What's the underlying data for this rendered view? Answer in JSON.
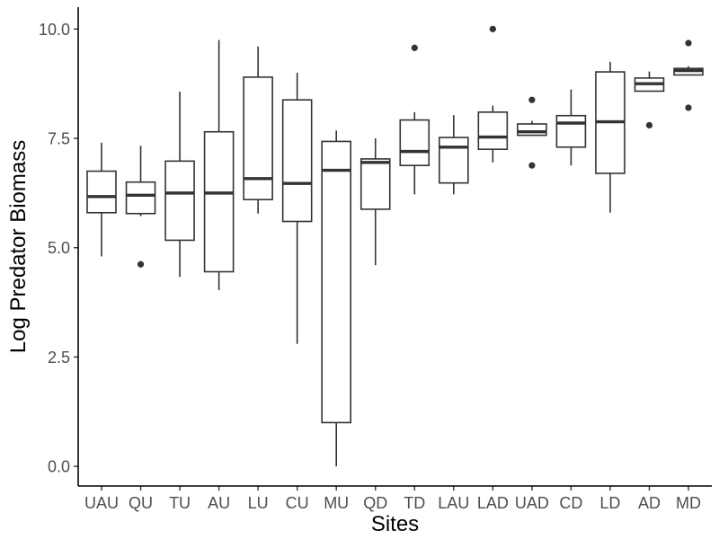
{
  "chart_data": {
    "type": "boxplot",
    "xlabel": "Sites",
    "ylabel": "Log Predator Biomass",
    "ylim": [
      -0.45,
      10.5
    ],
    "yticks": [
      0.0,
      2.5,
      5.0,
      7.5,
      10.0
    ],
    "ytick_labels": [
      "0.0",
      "2.5",
      "5.0",
      "7.5",
      "10.0"
    ],
    "grid": false,
    "categories": [
      "UAU",
      "QU",
      "TU",
      "AU",
      "LU",
      "CU",
      "MU",
      "QD",
      "TD",
      "LAU",
      "LAD",
      "UAD",
      "CD",
      "LD",
      "AD",
      "MD"
    ],
    "boxes": [
      {
        "site": "UAU",
        "whisker_low": 4.8,
        "q1": 5.8,
        "median": 6.17,
        "q3": 6.75,
        "whisker_high": 7.4,
        "outliers": []
      },
      {
        "site": "QU",
        "whisker_low": 5.72,
        "q1": 5.78,
        "median": 6.2,
        "q3": 6.5,
        "whisker_high": 7.33,
        "outliers": [
          4.62
        ]
      },
      {
        "site": "TU",
        "whisker_low": 4.33,
        "q1": 5.17,
        "median": 6.25,
        "q3": 6.98,
        "whisker_high": 8.57,
        "outliers": []
      },
      {
        "site": "AU",
        "whisker_low": 4.03,
        "q1": 4.45,
        "median": 6.25,
        "q3": 7.65,
        "whisker_high": 9.75,
        "outliers": []
      },
      {
        "site": "LU",
        "whisker_low": 5.78,
        "q1": 6.1,
        "median": 6.58,
        "q3": 8.9,
        "whisker_high": 9.6,
        "outliers": []
      },
      {
        "site": "CU",
        "whisker_low": 2.8,
        "q1": 5.6,
        "median": 6.47,
        "q3": 8.38,
        "whisker_high": 9.0,
        "outliers": []
      },
      {
        "site": "MU",
        "whisker_low": 0.0,
        "q1": 1.0,
        "median": 6.77,
        "q3": 7.43,
        "whisker_high": 7.68,
        "outliers": []
      },
      {
        "site": "QD",
        "whisker_low": 4.6,
        "q1": 5.88,
        "median": 6.95,
        "q3": 7.03,
        "whisker_high": 7.5,
        "outliers": []
      },
      {
        "site": "TD",
        "whisker_low": 6.22,
        "q1": 6.88,
        "median": 7.2,
        "q3": 7.92,
        "whisker_high": 8.1,
        "outliers": [
          9.57
        ]
      },
      {
        "site": "LAU",
        "whisker_low": 6.22,
        "q1": 6.48,
        "median": 7.3,
        "q3": 7.52,
        "whisker_high": 8.03,
        "outliers": []
      },
      {
        "site": "LAD",
        "whisker_low": 6.95,
        "q1": 7.25,
        "median": 7.53,
        "q3": 8.1,
        "whisker_high": 8.25,
        "outliers": [
          10.0
        ]
      },
      {
        "site": "UAD",
        "whisker_low": 7.57,
        "q1": 7.57,
        "median": 7.65,
        "q3": 7.83,
        "whisker_high": 7.9,
        "outliers": [
          8.38,
          6.88
        ]
      },
      {
        "site": "CD",
        "whisker_low": 6.88,
        "q1": 7.3,
        "median": 7.85,
        "q3": 8.02,
        "whisker_high": 8.62,
        "outliers": []
      },
      {
        "site": "LD",
        "whisker_low": 5.8,
        "q1": 6.7,
        "median": 7.88,
        "q3": 9.02,
        "whisker_high": 9.25,
        "outliers": []
      },
      {
        "site": "AD",
        "whisker_low": 8.58,
        "q1": 8.58,
        "median": 8.75,
        "q3": 8.88,
        "whisker_high": 9.03,
        "outliers": [
          7.8
        ]
      },
      {
        "site": "MD",
        "whisker_low": 8.95,
        "q1": 8.95,
        "median": 9.05,
        "q3": 9.1,
        "whisker_high": 9.15,
        "outliers": [
          9.68,
          8.2
        ]
      }
    ]
  }
}
